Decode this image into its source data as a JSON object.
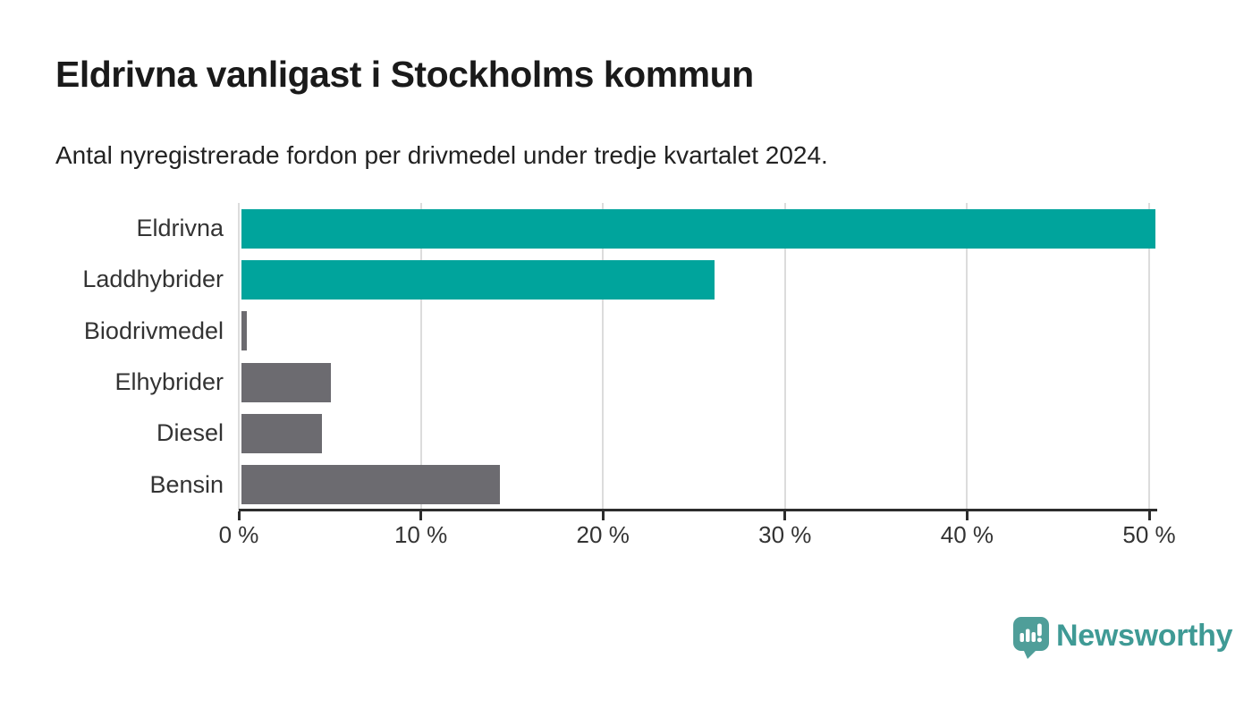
{
  "header": {
    "title": "Eldrivna vanligast i Stockholms kommun",
    "subtitle": "Antal nyregistrerade fordon per drivmedel under tredje kvartalet 2024."
  },
  "chart_data": {
    "type": "bar",
    "orientation": "horizontal",
    "categories": [
      "Eldrivna",
      "Laddhybrider",
      "Biodrivmedel",
      "Elhybrider",
      "Diesel",
      "Bensin"
    ],
    "values": [
      50.2,
      26.0,
      0.3,
      4.9,
      4.4,
      14.2
    ],
    "unit": "%",
    "bar_colors": [
      "#00a49c",
      "#00a49c",
      "#6c6b70",
      "#6c6b70",
      "#6c6b70",
      "#6c6b70"
    ],
    "highlight_color": "#00a49c",
    "base_color": "#6c6b70",
    "xlim": [
      0,
      50
    ],
    "x_ticks": [
      0,
      10,
      20,
      30,
      40,
      50
    ],
    "x_tick_labels": [
      "0 %",
      "10 %",
      "20 %",
      "30 %",
      "40 %",
      "50 %"
    ],
    "grid": "vertical",
    "gridline_color": "#dcdcdc",
    "axis_color": "#2d2d2d",
    "legend": "none"
  },
  "footer": {
    "brand": "Newsworthy",
    "logo_color": "#4f9e99",
    "brand_text_color": "#3f9a95"
  }
}
